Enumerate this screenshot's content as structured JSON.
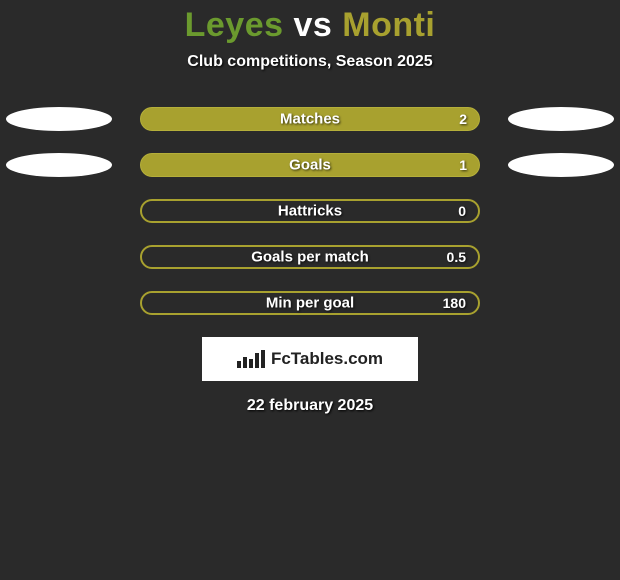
{
  "header": {
    "player_a": "Leyes",
    "vs": "vs",
    "player_b": "Monti",
    "color_a": "#6b9a2e",
    "color_vs": "#ffffff",
    "color_b": "#a8a12f",
    "subtitle": "Club competitions, Season 2025"
  },
  "colors": {
    "bar_fill": "#a8a12f",
    "bar_border": "#a8a12f",
    "bar_outline": "#b5af3a",
    "ellipse_left": [
      "#ffffff",
      "#ffffff"
    ],
    "ellipse_right": [
      "#ffffff",
      "#ffffff"
    ],
    "background": "#2a2a2a"
  },
  "stats": [
    {
      "label": "Matches",
      "value": "2",
      "fill": 1.0,
      "left_ellipse": true,
      "right_ellipse": true
    },
    {
      "label": "Goals",
      "value": "1",
      "fill": 1.0,
      "left_ellipse": true,
      "right_ellipse": true
    },
    {
      "label": "Hattricks",
      "value": "0",
      "fill": 0.0,
      "left_ellipse": false,
      "right_ellipse": false
    },
    {
      "label": "Goals per match",
      "value": "0.5",
      "fill": 0.0,
      "left_ellipse": false,
      "right_ellipse": false
    },
    {
      "label": "Min per goal",
      "value": "180",
      "fill": 0.0,
      "left_ellipse": false,
      "right_ellipse": false
    }
  ],
  "logo": {
    "text": "FcTables.com"
  },
  "date": "22 february 2025"
}
